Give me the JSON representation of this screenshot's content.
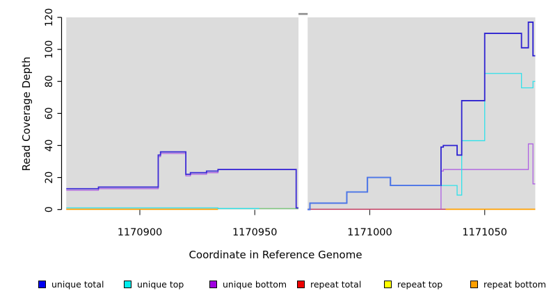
{
  "chart_data": {
    "type": "step-line",
    "title": "",
    "xlabel": "Coordinate in Reference Genome",
    "ylabel": "Read Coverage Depth",
    "xlim": [
      1170868,
      1171072
    ],
    "ylim": [
      0,
      120
    ],
    "y_ticks": [
      0,
      20,
      40,
      60,
      80,
      100,
      120
    ],
    "x_ticks": [
      1170900,
      1170950,
      1171000,
      1171050
    ],
    "grid": false,
    "panel_gap_x": [
      1170969,
      1170973
    ],
    "legend_position": "bottom",
    "panels": [
      {
        "name": "left",
        "x_range": [
          1170868,
          1170969
        ],
        "series": [
          {
            "name": "repeat-baseline",
            "color": "#ffa000",
            "width": 1.8,
            "points": [
              [
                1170868,
                0.15
              ]
            ],
            "x_end": 1170934
          },
          {
            "name": "repeat-baseline-overlap",
            "color": "#7fc87f",
            "width": 1.5,
            "points": [
              [
                1170934,
                0.6
              ]
            ],
            "x_end": 1170969
          },
          {
            "name": "unique bottom",
            "color": "#ae5fe2",
            "width": 1.3,
            "points": [
              [
                1170868,
                12
              ],
              [
                1170882,
                13
              ],
              [
                1170908,
                33
              ],
              [
                1170909,
                35
              ],
              [
                1170920,
                21
              ],
              [
                1170922,
                22
              ],
              [
                1170929,
                23
              ],
              [
                1170934,
                25
              ],
              [
                1170968,
                1
              ]
            ],
            "x_end": 1170969
          },
          {
            "name": "unique top",
            "color": "#2ee1ea",
            "width": 1.3,
            "points": [
              [
                1170868,
                1
              ],
              [
                1170934,
                0.6
              ]
            ],
            "x_end": 1170952
          },
          {
            "name": "unique total",
            "color": "#3d2cd5",
            "width": 1.8,
            "points": [
              [
                1170868,
                13
              ],
              [
                1170882,
                14
              ],
              [
                1170908,
                34
              ],
              [
                1170909,
                36
              ],
              [
                1170920,
                22
              ],
              [
                1170922,
                23
              ],
              [
                1170929,
                24
              ],
              [
                1170934,
                25
              ],
              [
                1170968,
                1
              ]
            ],
            "x_end": 1170969
          }
        ]
      },
      {
        "name": "right",
        "x_range": [
          1170973,
          1171072
        ],
        "series": [
          {
            "name": "repeat-baseline-overlap",
            "color": "#c23a5e",
            "width": 1.5,
            "points": [
              [
                1170973,
                0.15
              ]
            ],
            "x_end": 1171033
          },
          {
            "name": "repeat-baseline",
            "color": "#ffa000",
            "width": 1.8,
            "points": [
              [
                1171033,
                0.15
              ]
            ],
            "x_end": 1171072
          },
          {
            "name": "unique bottom",
            "color": "#ae5fe2",
            "width": 1.3,
            "rise": true,
            "points": [
              [
                1171031,
                24
              ],
              [
                1171032,
                25
              ],
              [
                1171069,
                41
              ],
              [
                1171071,
                16
              ]
            ],
            "x_end": 1171072
          },
          {
            "name": "unique top",
            "color": "#2ee1ea",
            "width": 1.3,
            "points": [
              [
                1170973,
                0
              ],
              [
                1170974,
                4
              ],
              [
                1170990,
                11
              ],
              [
                1170999,
                20
              ],
              [
                1171009,
                15
              ],
              [
                1171038,
                9
              ],
              [
                1171040,
                43
              ],
              [
                1171050,
                85
              ],
              [
                1171066,
                76
              ],
              [
                1171069,
                76
              ],
              [
                1171071,
                80
              ]
            ],
            "x_end": 1171072
          },
          {
            "name": "unique total",
            "color": "#2d21d1",
            "width": 1.8,
            "overlay_until": 1171031,
            "overlay_color": "#4b79e8",
            "points": [
              [
                1170973,
                0
              ],
              [
                1170974,
                4
              ],
              [
                1170990,
                11
              ],
              [
                1170999,
                20
              ],
              [
                1171009,
                15
              ],
              [
                1171031,
                39
              ],
              [
                1171032,
                40
              ],
              [
                1171038,
                34
              ],
              [
                1171040,
                68
              ],
              [
                1171050,
                110
              ],
              [
                1171066,
                101
              ],
              [
                1171069,
                117
              ],
              [
                1171071,
                96
              ]
            ],
            "x_end": 1171072
          }
        ]
      }
    ]
  },
  "labels": {
    "x_axis": "Coordinate in Reference Genome",
    "y_axis": "Read Coverage Depth"
  },
  "legend": [
    {
      "label": "unique total",
      "color": "#0000f0"
    },
    {
      "label": "unique top",
      "color": "#00eded"
    },
    {
      "label": "unique bottom",
      "color": "#a000e0"
    },
    {
      "label": "repeat total",
      "color": "#ee0000"
    },
    {
      "label": "repeat top",
      "color": "#ffff00"
    },
    {
      "label": "repeat bottom",
      "color": "#ffa000"
    }
  ],
  "style": {
    "panel_fill": "#dcdcdc",
    "axis_color": "#000000",
    "tick_color": "#2b2b2b",
    "gap_dash_color": "#8c8c8c"
  }
}
